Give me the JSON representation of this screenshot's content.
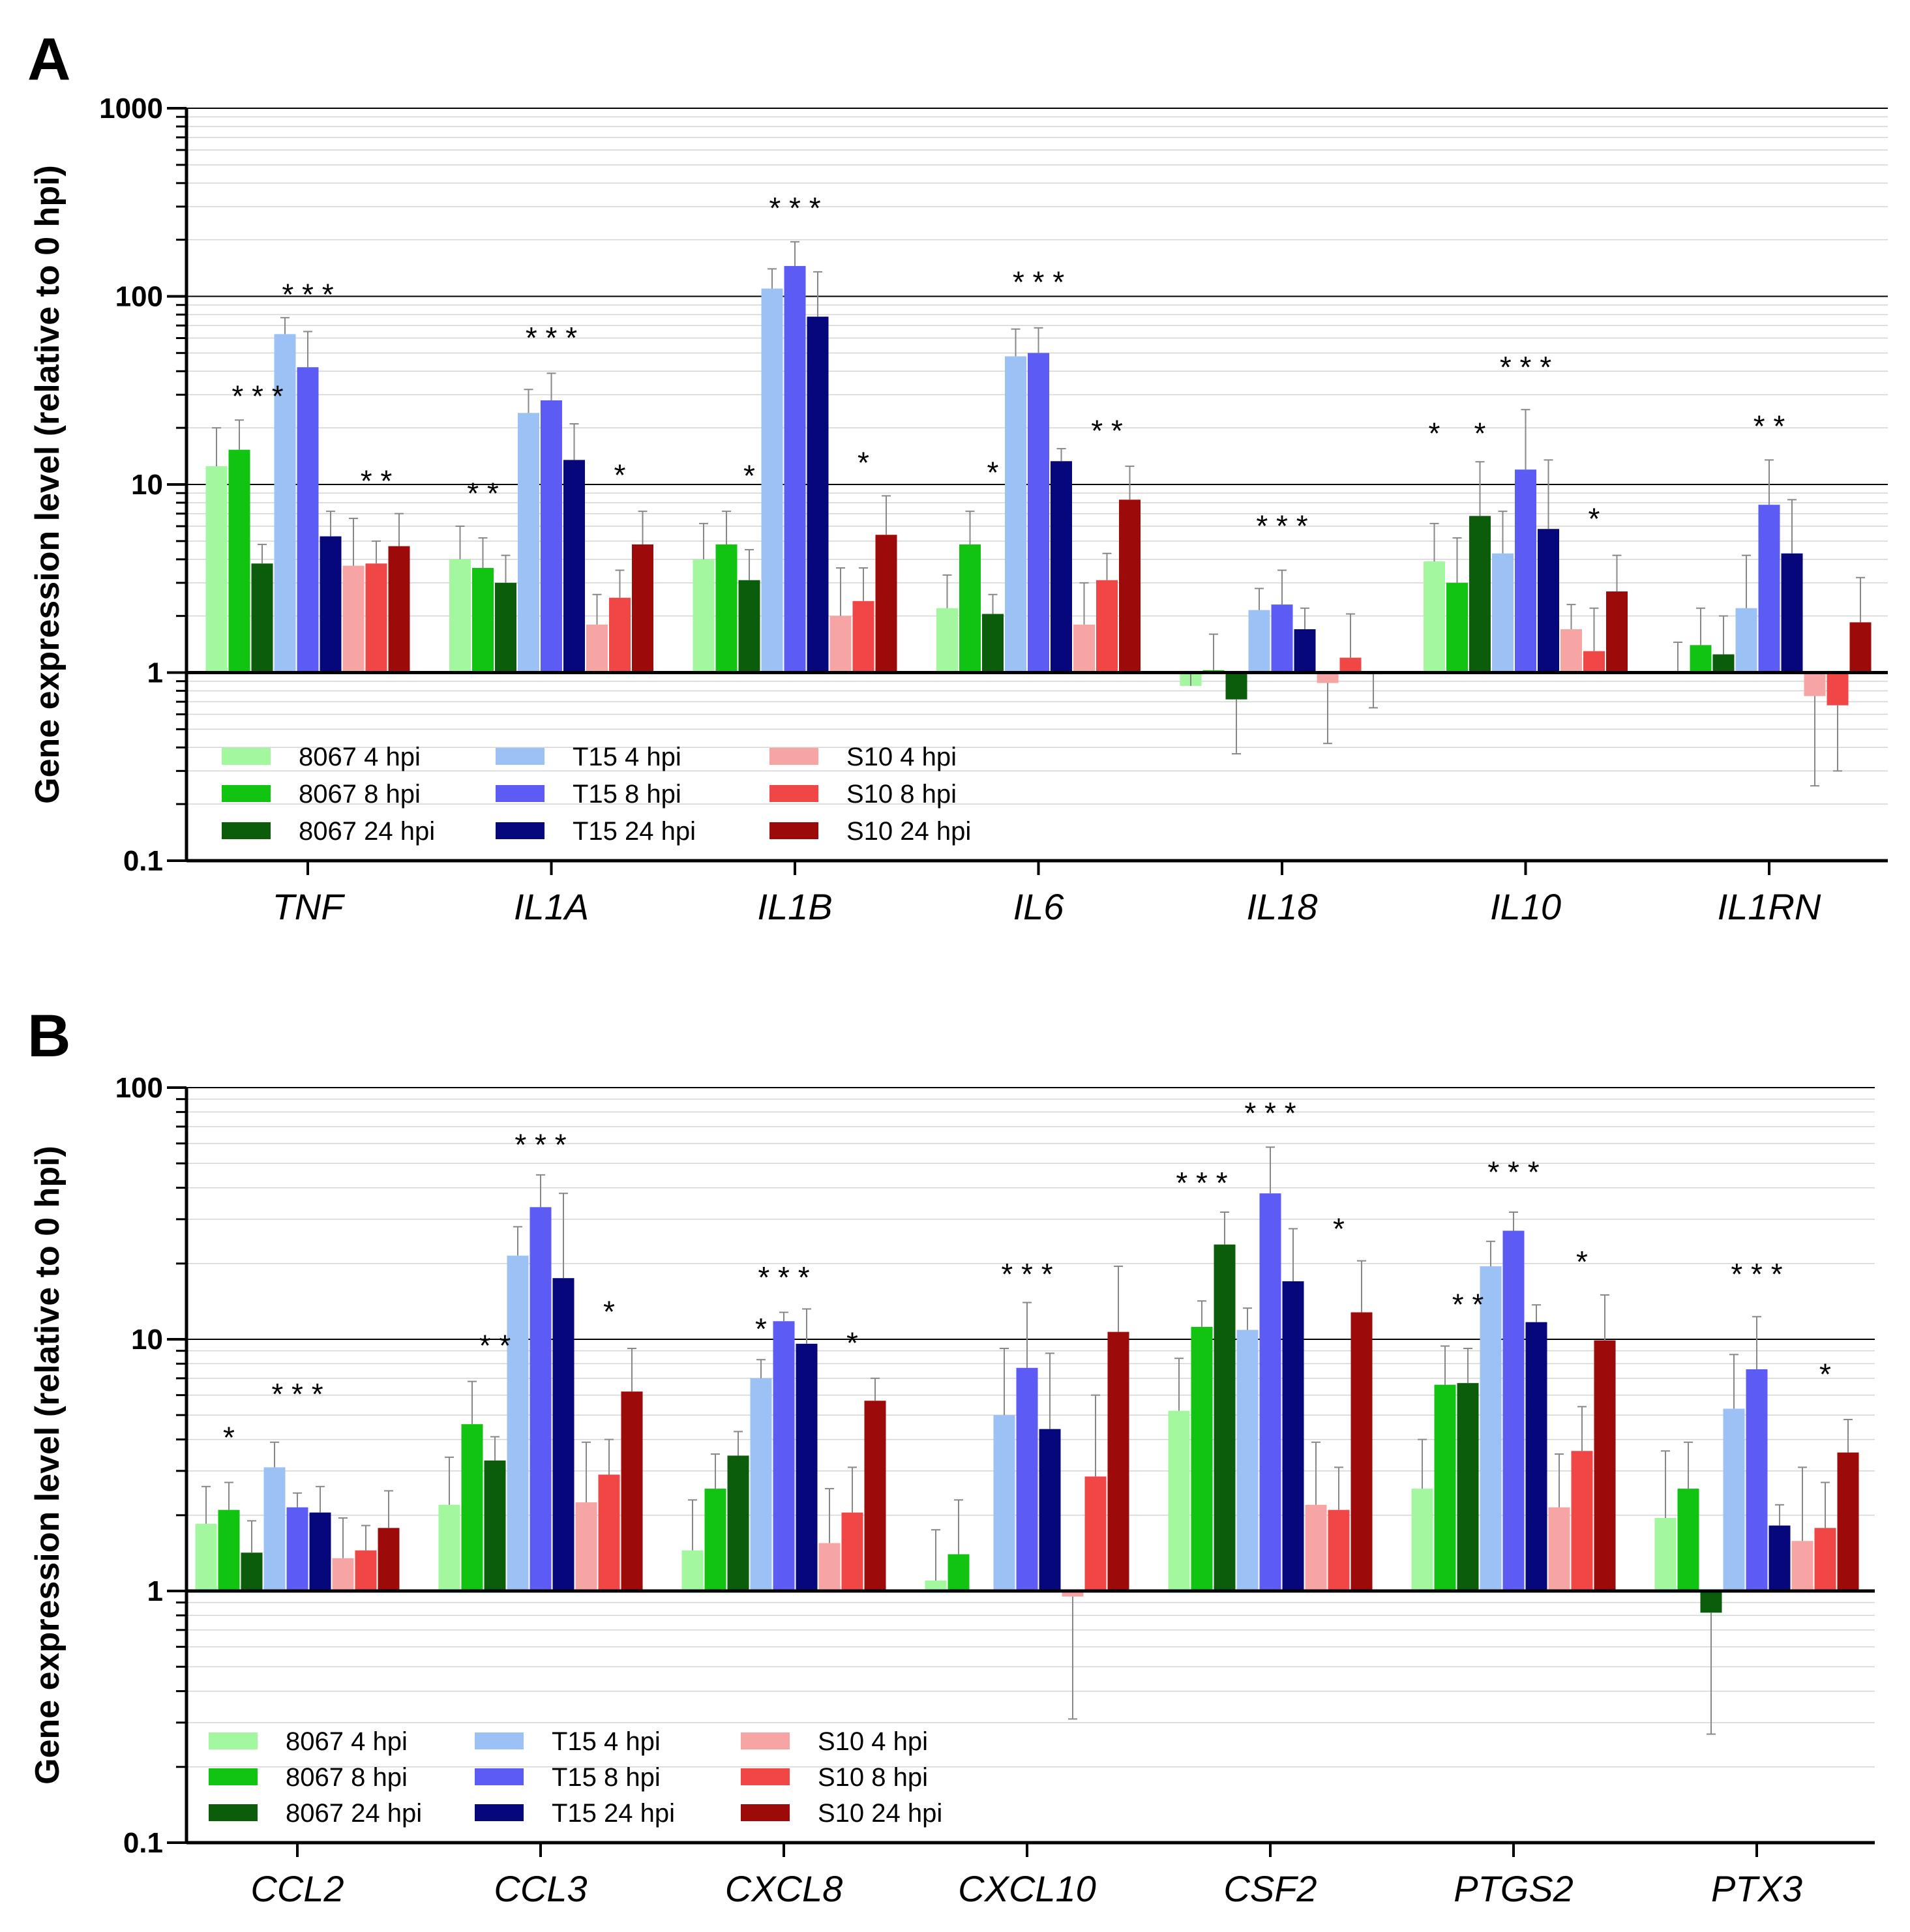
{
  "figure": {
    "legend": [
      {
        "label": "8067 4 hpi",
        "color": "#A3F79E"
      },
      {
        "label": "8067 8 hpi",
        "color": "#12C412"
      },
      {
        "label": "8067 24 hpi",
        "color": "#0B5D0B"
      },
      {
        "label": "T15 4 hpi",
        "color": "#9CC2F5"
      },
      {
        "label": "T15 8 hpi",
        "color": "#5C5CF5"
      },
      {
        "label": "T15 24 hpi",
        "color": "#07077C"
      },
      {
        "label": "S10 4 hpi",
        "color": "#F7A4A4"
      },
      {
        "label": "S10 8 hpi",
        "color": "#F04646"
      },
      {
        "label": "S10 24 hpi",
        "color": "#9C0A0A"
      }
    ]
  },
  "chart_data": [
    {
      "panel": "A",
      "type": "bar",
      "scale": "log",
      "ylabel": "Gene expression level (relative to 0 hpi)",
      "ylim": [
        0.1,
        1000
      ],
      "yticks": [
        "0.1",
        "1",
        "10",
        "100",
        "1000"
      ],
      "categories": [
        "TNF",
        "IL1A",
        "IL1B",
        "IL6",
        "IL18",
        "IL10",
        "IL1RN"
      ],
      "series": [
        {
          "name": "8067 4 hpi",
          "values": [
            12.5,
            4.0,
            4.0,
            2.2,
            0.85,
            3.9,
            1.0
          ],
          "err_hi": [
            20,
            6,
            6.2,
            3.3,
            1.0,
            6.2,
            1.45
          ]
        },
        {
          "name": "8067 8 hpi",
          "values": [
            15.3,
            3.6,
            4.8,
            4.8,
            1.03,
            3.0,
            1.4
          ],
          "err_hi": [
            22,
            5.2,
            7.2,
            7.2,
            1.6,
            5.2,
            2.2
          ]
        },
        {
          "name": "8067 24 hpi",
          "values": [
            3.8,
            3.0,
            3.1,
            2.05,
            0.72,
            6.8,
            1.25
          ],
          "err_hi": [
            4.8,
            4.2,
            4.5,
            2.6,
            0.37,
            13.2,
            2.0
          ]
        },
        {
          "name": "T15 4 hpi",
          "values": [
            63,
            24,
            110,
            48,
            2.15,
            4.3,
            2.2
          ],
          "err_hi": [
            77,
            32,
            140,
            67,
            2.8,
            7.2,
            4.2
          ]
        },
        {
          "name": "T15 8 hpi",
          "values": [
            42,
            28,
            145,
            50,
            2.3,
            12,
            7.8
          ],
          "err_hi": [
            65,
            39,
            195,
            68,
            3.5,
            25,
            13.5
          ]
        },
        {
          "name": "T15 24 hpi",
          "values": [
            5.3,
            13.5,
            78,
            13.3,
            1.7,
            5.8,
            4.3
          ],
          "err_hi": [
            7.2,
            21,
            135,
            15.5,
            2.2,
            13.5,
            8.3
          ]
        },
        {
          "name": "S10 4 hpi",
          "values": [
            3.7,
            1.8,
            2.0,
            1.8,
            0.88,
            1.7,
            0.75
          ],
          "err_hi": [
            6.6,
            2.6,
            3.6,
            3.0,
            0.42,
            2.3,
            0.25
          ]
        },
        {
          "name": "S10 8 hpi",
          "values": [
            3.8,
            2.5,
            2.4,
            3.1,
            1.2,
            1.3,
            0.67
          ],
          "err_hi": [
            5.0,
            3.5,
            3.6,
            4.3,
            2.05,
            2.2,
            0.3
          ]
        },
        {
          "name": "S10 24 hpi",
          "values": [
            4.7,
            4.8,
            5.4,
            8.3,
            0.98,
            2.7,
            1.85
          ],
          "err_hi": [
            7.0,
            7.2,
            8.7,
            12.5,
            0.65,
            4.2,
            3.2
          ]
        }
      ],
      "annotations": [
        {
          "text": "* * *",
          "category": "TNF",
          "offset": -2.2,
          "value": 26
        },
        {
          "text": "* * *",
          "category": "TNF",
          "offset": 0,
          "value": 90
        },
        {
          "text": "* *",
          "category": "TNF",
          "offset": 3,
          "value": 9.2
        },
        {
          "text": "* *",
          "category": "IL1A",
          "offset": -3,
          "value": 7.9
        },
        {
          "text": "* * *",
          "category": "IL1A",
          "offset": 0,
          "value": 53
        },
        {
          "text": "*",
          "category": "IL1A",
          "offset": 3,
          "value": 9.9
        },
        {
          "text": "*",
          "category": "IL1B",
          "offset": -2,
          "value": 9.8
        },
        {
          "text": "* * *",
          "category": "IL1B",
          "offset": 0,
          "value": 260
        },
        {
          "text": "*",
          "category": "IL1B",
          "offset": 3,
          "value": 11.5
        },
        {
          "text": "*",
          "category": "IL6",
          "offset": -2,
          "value": 10.2
        },
        {
          "text": "* * *",
          "category": "IL6",
          "offset": 0,
          "value": 105
        },
        {
          "text": "* *",
          "category": "IL6",
          "offset": 3,
          "value": 17
        },
        {
          "text": "* * *",
          "category": "IL18",
          "offset": 0,
          "value": 5.3
        },
        {
          "text": "*",
          "category": "IL10",
          "offset": -4,
          "value": 16.5
        },
        {
          "text": "*",
          "category": "IL10",
          "offset": -2,
          "value": 16.5
        },
        {
          "text": "* * *",
          "category": "IL10",
          "offset": 0,
          "value": 37
        },
        {
          "text": "*",
          "category": "IL10",
          "offset": 3,
          "value": 5.8
        },
        {
          "text": "* *",
          "category": "IL1RN",
          "offset": 0,
          "value": 18
        }
      ]
    },
    {
      "panel": "B",
      "type": "bar",
      "scale": "log",
      "ylabel": "Gene expression level (relative to 0 hpi)",
      "ylim": [
        0.1,
        100
      ],
      "yticks": [
        "0.1",
        "1",
        "10",
        "100"
      ],
      "categories": [
        "CCL2",
        "CCL3",
        "CXCL8",
        "CXCL10",
        "CSF2",
        "PTGS2",
        "PTX3"
      ],
      "series": [
        {
          "name": "8067 4 hpi",
          "values": [
            1.85,
            2.2,
            1.45,
            1.1,
            5.2,
            2.55,
            1.95
          ],
          "err_hi": [
            2.6,
            3.4,
            2.3,
            1.75,
            8.4,
            4.0,
            3.6
          ]
        },
        {
          "name": "8067 8 hpi",
          "values": [
            2.1,
            4.6,
            2.55,
            1.4,
            11.2,
            6.6,
            2.55
          ],
          "err_hi": [
            2.7,
            6.8,
            3.5,
            2.3,
            14.2,
            9.4,
            3.9
          ]
        },
        {
          "name": "8067 24 hpi",
          "values": [
            1.42,
            3.3,
            3.45,
            1.0,
            23.8,
            6.7,
            0.82
          ],
          "err_hi": [
            1.9,
            4.1,
            4.3,
            1.0,
            32,
            9.2,
            0.27
          ]
        },
        {
          "name": "T15 4 hpi",
          "values": [
            3.1,
            21.5,
            7.0,
            5.0,
            10.9,
            19.5,
            5.3
          ],
          "err_hi": [
            3.9,
            28,
            8.3,
            9.2,
            13.3,
            24.5,
            8.7
          ]
        },
        {
          "name": "T15 8 hpi",
          "values": [
            2.15,
            33.5,
            11.8,
            7.7,
            38,
            27,
            7.6
          ],
          "err_hi": [
            2.45,
            45,
            12.8,
            14,
            58,
            32,
            12.3
          ]
        },
        {
          "name": "T15 24 hpi",
          "values": [
            2.05,
            17.5,
            9.6,
            4.4,
            17,
            11.7,
            1.82
          ],
          "err_hi": [
            2.6,
            38,
            13.2,
            8.8,
            27.5,
            13.7,
            2.2
          ]
        },
        {
          "name": "S10 4 hpi",
          "values": [
            1.35,
            2.25,
            1.55,
            1.0,
            2.2,
            2.15,
            1.58
          ],
          "err_hi": [
            1.95,
            3.9,
            2.55,
            1.0,
            3.9,
            3.5,
            3.1
          ]
        },
        {
          "name": "S10 8 hpi",
          "values": [
            1.45,
            2.9,
            2.05,
            2.85,
            2.1,
            3.6,
            1.78
          ],
          "err_hi": [
            1.82,
            4.0,
            3.1,
            6.0,
            3.1,
            5.4,
            2.7
          ]
        },
        {
          "name": "S10 24 hpi",
          "values": [
            1.78,
            6.2,
            5.7,
            10.7,
            12.8,
            9.9,
            3.55
          ],
          "err_hi": [
            2.5,
            9.2,
            7.0,
            19.5,
            20.5,
            15,
            4.8
          ]
        }
      ],
      "extra_bars": [
        {
          "series": "S10 4 hpi",
          "category": "CXCL10",
          "value": 0.95,
          "err_lo": 0.31
        }
      ],
      "annotations": [
        {
          "text": "*",
          "category": "CCL2",
          "offset": -3,
          "value": 3.7
        },
        {
          "text": "* * *",
          "category": "CCL2",
          "offset": 0,
          "value": 5.5
        },
        {
          "text": "* *",
          "category": "CCL3",
          "offset": -2,
          "value": 8.6
        },
        {
          "text": "* * *",
          "category": "CCL3",
          "offset": 0,
          "value": 54
        },
        {
          "text": "*",
          "category": "CCL3",
          "offset": 3,
          "value": 11.7
        },
        {
          "text": "*",
          "category": "CXCL8",
          "offset": -1,
          "value": 10
        },
        {
          "text": "* * *",
          "category": "CXCL8",
          "offset": 0,
          "value": 16
        },
        {
          "text": "*",
          "category": "CXCL8",
          "offset": 3,
          "value": 8.8
        },
        {
          "text": "* * *",
          "category": "CXCL10",
          "offset": 0,
          "value": 16.5
        },
        {
          "text": "* * *",
          "category": "CSF2",
          "offset": -3,
          "value": 38
        },
        {
          "text": "* * *",
          "category": "CSF2",
          "offset": 0,
          "value": 72
        },
        {
          "text": "*",
          "category": "CSF2",
          "offset": 3,
          "value": 25
        },
        {
          "text": "* *",
          "category": "PTGS2",
          "offset": -2,
          "value": 12.5
        },
        {
          "text": "* * *",
          "category": "PTGS2",
          "offset": 0,
          "value": 42
        },
        {
          "text": "*",
          "category": "PTGS2",
          "offset": 3,
          "value": 18.5
        },
        {
          "text": "* * *",
          "category": "PTX3",
          "offset": 0,
          "value": 16.5
        },
        {
          "text": "*",
          "category": "PTX3",
          "offset": 3,
          "value": 6.6
        }
      ]
    }
  ]
}
